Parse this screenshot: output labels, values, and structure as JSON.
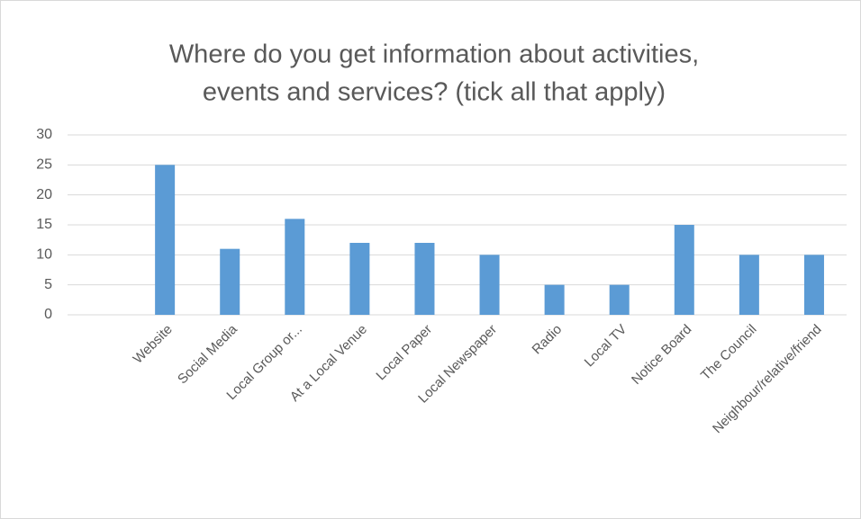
{
  "chart_data": {
    "type": "bar",
    "title": [
      "Where do you get information about activities,",
      "events and services? (tick all that apply)"
    ],
    "categories": [
      null,
      "Website",
      "Social Media",
      "Local Group or...",
      "At a Local Venue",
      "Local Paper",
      "Local Newspaper",
      "Radio",
      "Local TV",
      "Notice Board",
      "The Council",
      "Neighbour/relative/friend"
    ],
    "values": [
      null,
      25,
      11,
      16,
      12,
      12,
      10,
      5,
      5,
      15,
      10,
      10
    ],
    "color": "#5b9bd5",
    "ylim": [
      0,
      30
    ],
    "yticks": [
      0,
      5,
      10,
      15,
      20,
      25,
      30
    ],
    "grid": true
  }
}
